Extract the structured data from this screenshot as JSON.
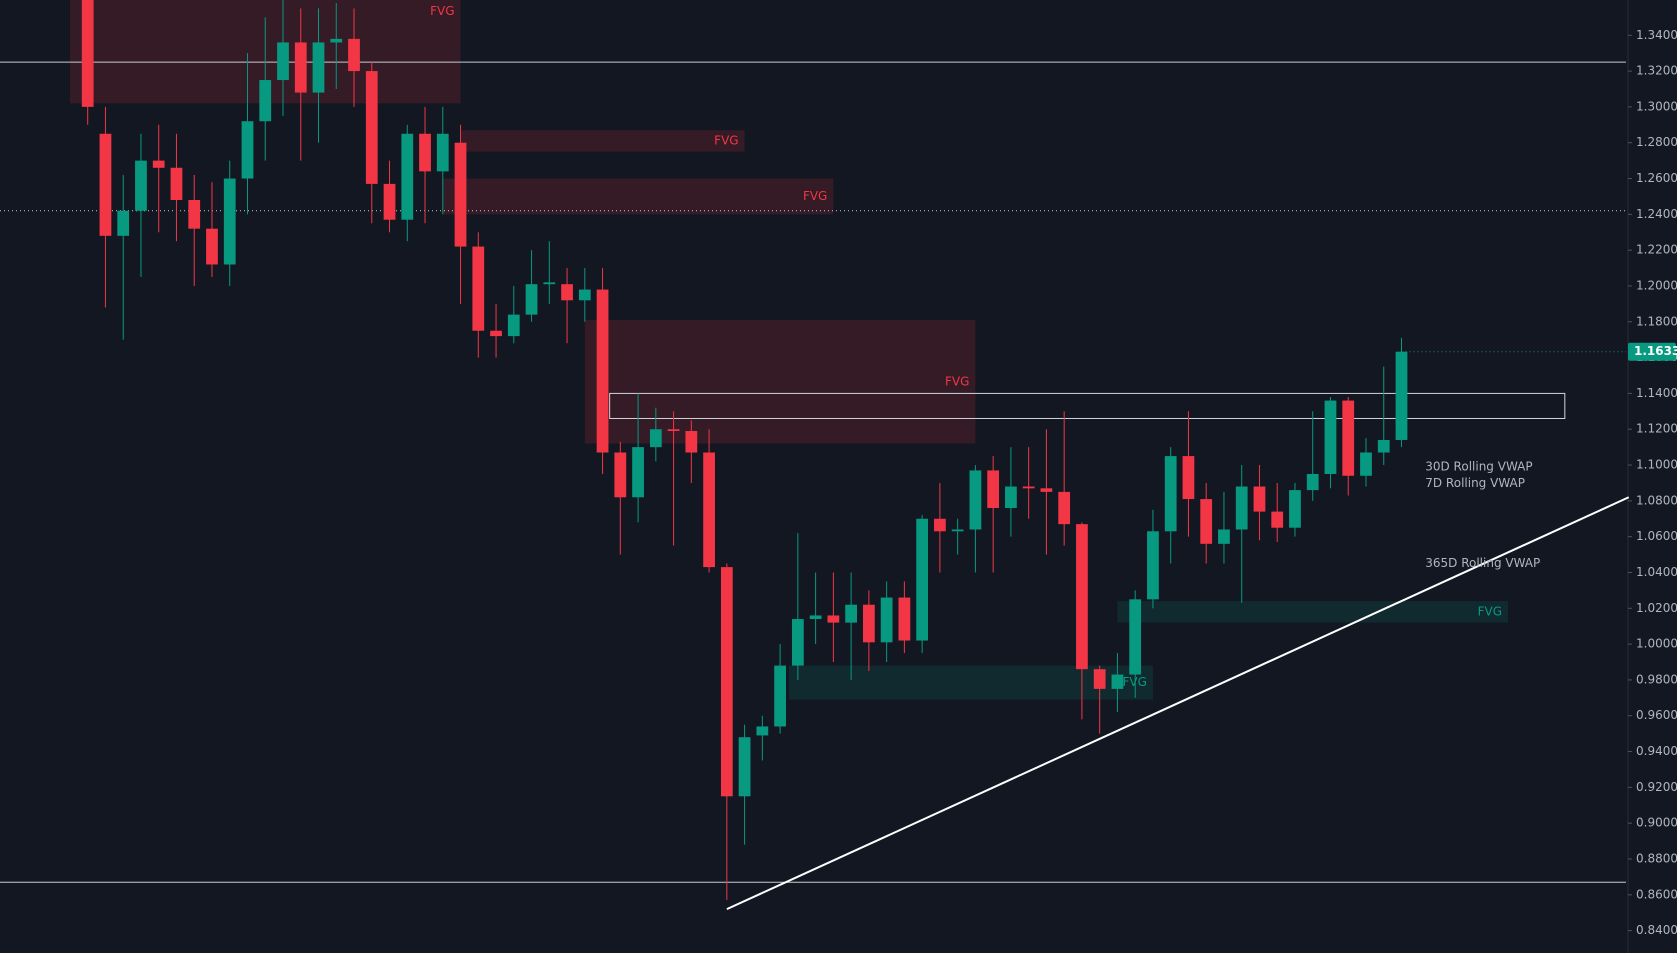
{
  "chart_data": {
    "type": "candlestick",
    "up_color": "#089981",
    "down_color": "#f23645",
    "ylim": [
      0.8275,
      1.3597
    ],
    "yticks": [
      {
        "value": 0.84,
        "label": "0.8400"
      },
      {
        "value": 0.86,
        "label": "0.8600"
      },
      {
        "value": 0.88,
        "label": "0.8800"
      },
      {
        "value": 0.9,
        "label": "0.9000"
      },
      {
        "value": 0.92,
        "label": "0.9200"
      },
      {
        "value": 0.94,
        "label": "0.9400"
      },
      {
        "value": 0.96,
        "label": "0.9600"
      },
      {
        "value": 0.98,
        "label": "0.9800"
      },
      {
        "value": 1.0,
        "label": "1.0000"
      },
      {
        "value": 1.02,
        "label": "1.0200"
      },
      {
        "value": 1.04,
        "label": "1.0400"
      },
      {
        "value": 1.06,
        "label": "1.0600"
      },
      {
        "value": 1.08,
        "label": "1.0800"
      },
      {
        "value": 1.1,
        "label": "1.1000"
      },
      {
        "value": 1.12,
        "label": "1.1200"
      },
      {
        "value": 1.14,
        "label": "1.1400"
      },
      {
        "value": 1.16,
        "label": "1.1600"
      },
      {
        "value": 1.18,
        "label": "1.1800"
      },
      {
        "value": 1.2,
        "label": "1.2000"
      },
      {
        "value": 1.22,
        "label": "1.2200"
      },
      {
        "value": 1.24,
        "label": "1.2400"
      },
      {
        "value": 1.26,
        "label": "1.2600"
      },
      {
        "value": 1.28,
        "label": "1.2800"
      },
      {
        "value": 1.3,
        "label": "1.3000"
      },
      {
        "value": 1.32,
        "label": "1.3200"
      },
      {
        "value": 1.34,
        "label": "1.3400"
      }
    ],
    "open": [
      1.36,
      1.285,
      1.228,
      1.242,
      1.27,
      1.266,
      1.248,
      1.232,
      1.212,
      1.26,
      1.292,
      1.315,
      1.336,
      1.308,
      1.336,
      1.338,
      1.32,
      1.257,
      1.237,
      1.285,
      1.264,
      1.28,
      1.222,
      1.175,
      1.172,
      1.184,
      1.201,
      1.201,
      1.192,
      1.198,
      1.107,
      1.082,
      1.11,
      1.12,
      1.119,
      1.107,
      1.043,
      0.915,
      0.949,
      0.954,
      0.988,
      1.014,
      1.016,
      1.012,
      1.022,
      1.001,
      1.026,
      1.002,
      1.07,
      1.063,
      1.064,
      1.097,
      1.076,
      1.088,
      1.087,
      1.085,
      1.067,
      0.986,
      0.975,
      0.983,
      1.025,
      1.063,
      1.105,
      1.081,
      1.056,
      1.064,
      1.088,
      1.074,
      1.065,
      1.086,
      1.095,
      1.136,
      1.094,
      1.107,
      1.114
    ],
    "high": [
      1.37,
      1.3,
      1.262,
      1.285,
      1.29,
      1.285,
      1.262,
      1.258,
      1.27,
      1.33,
      1.35,
      1.36,
      1.355,
      1.355,
      1.358,
      1.355,
      1.325,
      1.27,
      1.29,
      1.3,
      1.3,
      1.29,
      1.23,
      1.19,
      1.2,
      1.22,
      1.225,
      1.21,
      1.21,
      1.21,
      1.113,
      1.14,
      1.132,
      1.13,
      1.125,
      1.12,
      1.045,
      0.955,
      0.96,
      1.0,
      1.062,
      1.04,
      1.04,
      1.04,
      1.03,
      1.035,
      1.035,
      1.072,
      1.09,
      1.07,
      1.1,
      1.105,
      1.11,
      1.11,
      1.12,
      1.13,
      1.068,
      0.988,
      0.995,
      1.03,
      1.075,
      1.11,
      1.13,
      1.09,
      1.085,
      1.1,
      1.1,
      1.09,
      1.09,
      1.13,
      1.138,
      1.138,
      1.115,
      1.155,
      1.171
    ],
    "low": [
      1.29,
      1.188,
      1.17,
      1.205,
      1.23,
      1.225,
      1.2,
      1.205,
      1.2,
      1.24,
      1.27,
      1.295,
      1.27,
      1.28,
      1.31,
      1.3,
      1.235,
      1.23,
      1.225,
      1.235,
      1.24,
      1.19,
      1.16,
      1.16,
      1.168,
      1.18,
      1.19,
      1.168,
      1.18,
      1.095,
      1.05,
      1.068,
      1.102,
      1.055,
      1.09,
      1.04,
      0.857,
      0.888,
      0.935,
      0.95,
      0.98,
      1.0,
      0.99,
      0.98,
      0.985,
      0.99,
      0.995,
      0.995,
      1.04,
      1.05,
      1.04,
      1.04,
      1.06,
      1.07,
      1.05,
      1.055,
      0.958,
      0.95,
      0.962,
      0.97,
      1.02,
      1.045,
      1.06,
      1.045,
      1.045,
      1.023,
      1.058,
      1.057,
      1.06,
      1.08,
      1.087,
      1.083,
      1.088,
      1.1,
      1.11
    ],
    "close": [
      1.3,
      1.228,
      1.242,
      1.27,
      1.266,
      1.248,
      1.232,
      1.212,
      1.26,
      1.292,
      1.315,
      1.336,
      1.308,
      1.336,
      1.338,
      1.32,
      1.257,
      1.237,
      1.285,
      1.264,
      1.285,
      1.222,
      1.175,
      1.172,
      1.184,
      1.201,
      1.202,
      1.192,
      1.198,
      1.107,
      1.082,
      1.11,
      1.12,
      1.119,
      1.107,
      1.043,
      0.915,
      0.948,
      0.954,
      0.988,
      1.014,
      1.016,
      1.012,
      1.022,
      1.001,
      1.026,
      1.002,
      1.07,
      1.063,
      1.064,
      1.097,
      1.076,
      1.088,
      1.087,
      1.085,
      1.067,
      0.986,
      0.975,
      0.983,
      1.025,
      1.063,
      1.105,
      1.081,
      1.056,
      1.064,
      1.088,
      1.074,
      1.065,
      1.086,
      1.095,
      1.136,
      1.094,
      1.107,
      1.114,
      1.1633
    ],
    "last_price": {
      "value": 1.1633,
      "label": "1.1633",
      "color": "#089981"
    },
    "levels": [
      {
        "value": 1.325,
        "style": "solid",
        "color": "#c8cad0"
      },
      {
        "value": 1.242,
        "style": "dotted",
        "color": "#c8cad0"
      },
      {
        "value": 0.867,
        "style": "solid",
        "color": "#c8cad0"
      }
    ],
    "zones": [
      {
        "label": "FVG",
        "top": 1.3597,
        "bottom": 1.302,
        "from": -1,
        "to": 21,
        "color": "#f23645"
      },
      {
        "label": "FVG",
        "top": 1.287,
        "bottom": 1.275,
        "from": 21,
        "to": 37,
        "color": "#f23645"
      },
      {
        "label": "FVG",
        "top": 1.26,
        "bottom": 1.24,
        "from": 20,
        "to": 42,
        "color": "#f23645"
      },
      {
        "label": "FVG",
        "top": 1.181,
        "bottom": 1.112,
        "from": 28,
        "to": 50,
        "color": "#f23645"
      },
      {
        "label": "FVG",
        "top": 0.988,
        "bottom": 0.969,
        "from": 39.5,
        "to": 60,
        "color": "#089981"
      },
      {
        "label": "FVG",
        "top": 1.024,
        "bottom": 1.012,
        "from": 58,
        "to": 80,
        "color": "#089981"
      }
    ],
    "box": {
      "top": 1.14,
      "bottom": 1.126,
      "from": 29.4,
      "to": 83.2
    },
    "trendline": {
      "x": [
        36,
        86.8
      ],
      "y": [
        0.852,
        1.082
      ]
    },
    "vwap_labels": [
      {
        "text": "30D Rolling VWAP",
        "value": 1.099
      },
      {
        "text": "7D Rolling VWAP",
        "value": 1.0897
      },
      {
        "text": "365D Rolling VWAP",
        "value": 1.0449
      }
    ]
  }
}
